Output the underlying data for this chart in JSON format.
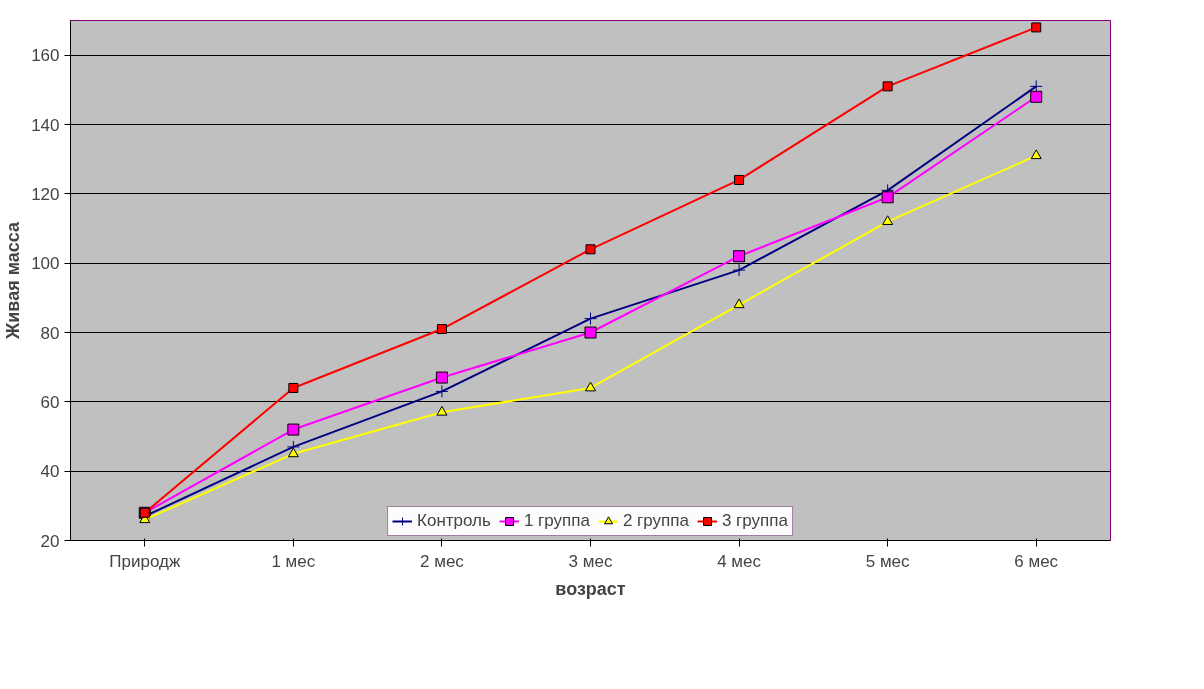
{
  "chart_data": {
    "type": "line",
    "xlabel": "возраст",
    "ylabel": "Живая масса",
    "categories": [
      "Природж",
      "1 мес",
      "2 мес",
      "3 мес",
      "4 мес",
      "5 мес",
      "6 мес"
    ],
    "series": [
      {
        "name": "Контроль",
        "color": "#000080",
        "marker": "cross",
        "values": [
          27,
          47,
          63,
          84,
          98,
          121,
          151
        ]
      },
      {
        "name": "1 группа",
        "color": "#ff00ff",
        "marker": "square",
        "values": [
          28,
          52,
          67,
          80,
          102,
          119,
          148
        ]
      },
      {
        "name": "2 группа",
        "color": "#ffff00",
        "marker": "triangle",
        "values": [
          26,
          45,
          57,
          64,
          88,
          112,
          131
        ]
      },
      {
        "name": "3 группа",
        "color": "#ff0000",
        "marker": "square",
        "values": [
          28,
          64,
          81,
          104,
          124,
          151,
          168
        ]
      }
    ],
    "ylim": [
      20,
      170
    ],
    "yticks": [
      20,
      40,
      60,
      80,
      100,
      120,
      140,
      160
    ],
    "grid": "y",
    "legend": "bottom"
  }
}
